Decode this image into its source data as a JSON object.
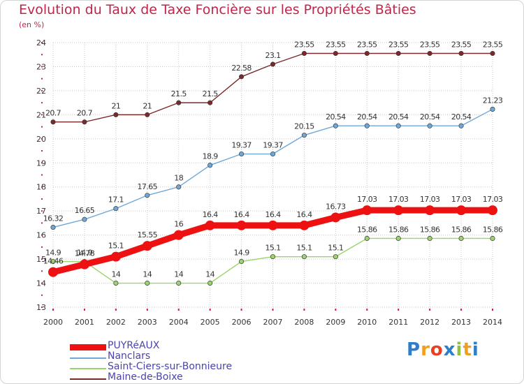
{
  "title": "Evolution du Taux de Taxe Foncière sur les Propriétés Bâties",
  "unit": "(en %)",
  "colors": {
    "title": "#c0254a",
    "grid": "#c8c8c8",
    "axis_tick": "#c0254a",
    "label": "#333333",
    "legend_text": "#4a44ac"
  },
  "chart_data": {
    "type": "line",
    "x": [
      "2000",
      "2001",
      "2002",
      "2003",
      "2004",
      "2005",
      "2006",
      "2007",
      "2008",
      "2009",
      "2010",
      "2011",
      "2012",
      "2013",
      "2014"
    ],
    "ylim": [
      13,
      24
    ],
    "yticks": [
      "13",
      "14",
      "15",
      "16",
      "17",
      "18",
      "19",
      "20",
      "21",
      "22",
      "23",
      "24"
    ],
    "grid": true,
    "legend_position": "bottom-left",
    "series": [
      {
        "name": "Maine-de-Boixe",
        "color": "#7a2a2a",
        "thick": false,
        "values": [
          20.7,
          20.7,
          21,
          21,
          21.5,
          21.5,
          22.58,
          23.1,
          23.55,
          23.55,
          23.55,
          23.55,
          23.55,
          23.55,
          23.55
        ],
        "labels": [
          "20.7",
          "20.7",
          "21",
          "21",
          "21.5",
          "21.5",
          "22.58",
          "23.1",
          "23.55",
          "23.55",
          "23.55",
          "23.55",
          "23.55",
          "23.55",
          "23.55"
        ]
      },
      {
        "name": "Nanclars",
        "color": "#6fa8d8",
        "thick": false,
        "values": [
          16.32,
          16.65,
          17.1,
          17.65,
          18,
          18.9,
          19.37,
          19.37,
          20.15,
          20.54,
          20.54,
          20.54,
          20.54,
          20.54,
          21.23
        ],
        "labels": [
          "16.32",
          "16.65",
          "17.1",
          "17.65",
          "18",
          "18.9",
          "19.37",
          "19.37",
          "20.15",
          "20.54",
          "20.54",
          "20.54",
          "20.54",
          "20.54",
          "21.23"
        ]
      },
      {
        "name": "Saint-Ciers-sur-Bonnieure",
        "color": "#9ad46a",
        "thick": false,
        "values": [
          14.9,
          14.9,
          14,
          14,
          14,
          14,
          14.9,
          15.1,
          15.1,
          15.1,
          15.86,
          15.86,
          15.86,
          15.86,
          15.86
        ],
        "labels": [
          "14.9",
          "14.9",
          "14",
          "14",
          "14",
          "14",
          "14.9",
          "15.1",
          "15.1",
          "15.1",
          "15.86",
          "15.86",
          "15.86",
          "15.86",
          "15.86"
        ]
      },
      {
        "name": "PUYRéAUX",
        "color": "#ee1111",
        "thick": true,
        "values": [
          14.46,
          14.78,
          15.1,
          15.55,
          16,
          16.4,
          16.4,
          16.4,
          16.4,
          16.73,
          17.03,
          17.03,
          17.03,
          17.03,
          17.03
        ],
        "labels": [
          "14.46",
          "14.78",
          "15.1",
          "15.55",
          "16",
          "16.4",
          "16.4",
          "16.4",
          "16.4",
          "16.73",
          "17.03",
          "17.03",
          "17.03",
          "17.03",
          "17.03"
        ]
      }
    ]
  },
  "legend": {
    "items": [
      {
        "label": "PUYRéAUX",
        "color": "#ee1111",
        "thick": true
      },
      {
        "label": "Nanclars",
        "color": "#6fa8d8",
        "thick": false
      },
      {
        "label": "Saint-Ciers-sur-Bonnieure",
        "color": "#9ad46a",
        "thick": false
      },
      {
        "label": "Maine-de-Boixe",
        "color": "#7a2a2a",
        "thick": false
      }
    ]
  },
  "logo": {
    "text": "Proxiti",
    "letters": [
      "P",
      "r",
      "o",
      "x",
      "i",
      "t",
      "i"
    ],
    "colors": [
      "#2e7ec8",
      "#f0a020",
      "#e84020",
      "#2e7ec8",
      "#90c040",
      "#f0a020",
      "#2e7ec8"
    ]
  }
}
